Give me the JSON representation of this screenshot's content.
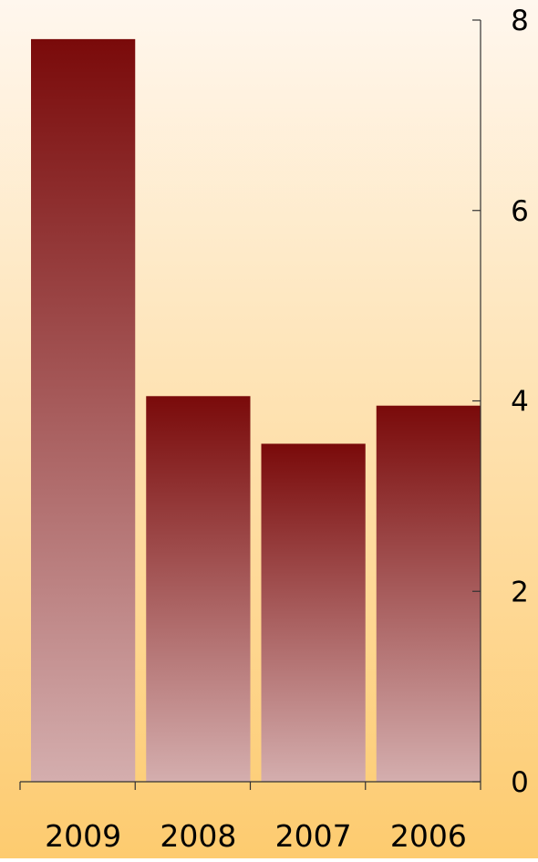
{
  "chart_data": {
    "type": "bar",
    "categories": [
      "2009",
      "2008",
      "2007",
      "2006"
    ],
    "values": [
      7.8,
      4.05,
      3.55,
      3.95
    ],
    "ylim": [
      0,
      8
    ],
    "yticks": [
      "0",
      "2",
      "4",
      "6",
      "8"
    ],
    "y_axis_position": "right",
    "grid": false,
    "legend": "none",
    "colors": {
      "background_top": "#fff7ee",
      "background_bottom": "#fdcb6f",
      "bar_top": "#7a0a0a",
      "bar_bottom": "#d4aeae",
      "axis": "#333333",
      "text": "#000000"
    }
  }
}
